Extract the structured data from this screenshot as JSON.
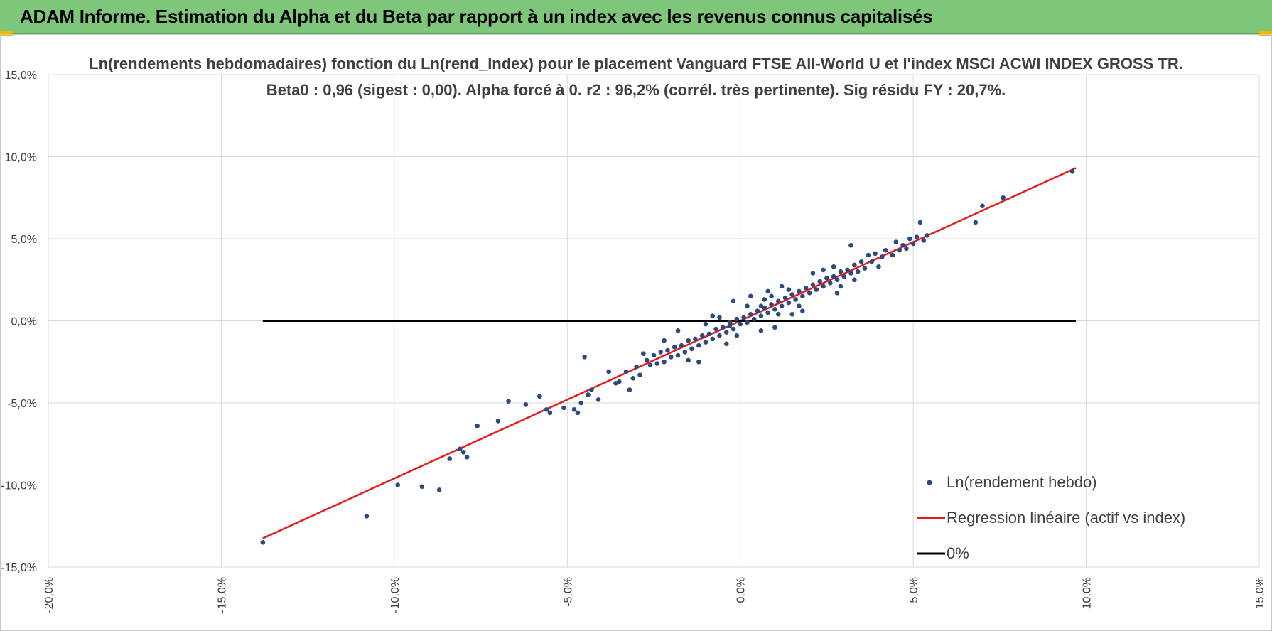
{
  "banner": {
    "title": "ADAM Informe. Estimation du Alpha et du Beta par rapport à un index avec les revenus connus capitalisés",
    "background": "#7dc67a"
  },
  "chart_data": {
    "type": "scatter",
    "title": "Ln(rendements hebdomadaires) fonction du Ln(rend_Index) pour le placement Vanguard FTSE All-World U et l'index MSCI ACWI INDEX GROSS TR.",
    "subtitle": "Beta0 : 0,96 (sigest : 0,00). Alpha forcé à 0. r2 : 96,2% (corrél. très pertinente). Sig résidu FY : 20,7%.",
    "xlabel": "",
    "ylabel": "",
    "xlim": [
      -0.2,
      0.15
    ],
    "ylim": [
      -0.15,
      0.15
    ],
    "x_ticks": [
      -0.2,
      -0.15,
      -0.1,
      -0.05,
      0.0,
      0.05,
      0.1,
      0.15
    ],
    "y_ticks": [
      -0.15,
      -0.1,
      -0.05,
      0.0,
      0.05,
      0.1,
      0.15
    ],
    "x_tick_labels": [
      "-20,0%",
      "-15,0%",
      "-10,0%",
      "-5,0%",
      "0,0%",
      "5,0%",
      "10,0%",
      "15,0%"
    ],
    "y_tick_labels": [
      "-15,0%",
      "-10,0%",
      "-5,0%",
      "0,0%",
      "5,0%",
      "10,0%",
      "15,0%"
    ],
    "grid": true,
    "legend_position": "bottom-right",
    "series": [
      {
        "name": "Ln(rendement hebdo)",
        "kind": "points",
        "color": "#2e4a7d",
        "points": [
          [
            -0.138,
            -0.135
          ],
          [
            -0.108,
            -0.119
          ],
          [
            -0.099,
            -0.1
          ],
          [
            -0.092,
            -0.101
          ],
          [
            -0.087,
            -0.103
          ],
          [
            -0.081,
            -0.078
          ],
          [
            -0.08,
            -0.08
          ],
          [
            -0.079,
            -0.083
          ],
          [
            -0.084,
            -0.084
          ],
          [
            -0.076,
            -0.064
          ],
          [
            -0.07,
            -0.061
          ],
          [
            -0.067,
            -0.049
          ],
          [
            -0.062,
            -0.051
          ],
          [
            -0.056,
            -0.054
          ],
          [
            -0.055,
            -0.056
          ],
          [
            -0.058,
            -0.046
          ],
          [
            -0.051,
            -0.053
          ],
          [
            -0.048,
            -0.054
          ],
          [
            -0.047,
            -0.056
          ],
          [
            -0.046,
            -0.05
          ],
          [
            -0.044,
            -0.045
          ],
          [
            -0.043,
            -0.042
          ],
          [
            -0.041,
            -0.048
          ],
          [
            -0.036,
            -0.038
          ],
          [
            -0.035,
            -0.037
          ],
          [
            -0.033,
            -0.031
          ],
          [
            -0.032,
            -0.042
          ],
          [
            -0.031,
            -0.035
          ],
          [
            -0.03,
            -0.028
          ],
          [
            -0.029,
            -0.033
          ],
          [
            -0.027,
            -0.024
          ],
          [
            -0.026,
            -0.027
          ],
          [
            -0.045,
            -0.022
          ],
          [
            -0.038,
            -0.031
          ],
          [
            -0.025,
            -0.021
          ],
          [
            -0.024,
            -0.026
          ],
          [
            -0.023,
            -0.019
          ],
          [
            -0.022,
            -0.025
          ],
          [
            -0.021,
            -0.018
          ],
          [
            -0.02,
            -0.022
          ],
          [
            -0.019,
            -0.016
          ],
          [
            -0.018,
            -0.021
          ],
          [
            -0.017,
            -0.015
          ],
          [
            -0.016,
            -0.019
          ],
          [
            -0.015,
            -0.012
          ],
          [
            -0.014,
            -0.017
          ],
          [
            -0.013,
            -0.011
          ],
          [
            -0.012,
            -0.015
          ],
          [
            -0.011,
            -0.009
          ],
          [
            -0.01,
            -0.013
          ],
          [
            -0.009,
            -0.008
          ],
          [
            -0.008,
            -0.011
          ],
          [
            -0.007,
            -0.005
          ],
          [
            -0.006,
            -0.009
          ],
          [
            -0.005,
            -0.004
          ],
          [
            -0.004,
            -0.007
          ],
          [
            -0.003,
            -0.001
          ],
          [
            -0.002,
            -0.005
          ],
          [
            -0.001,
            0.001
          ],
          [
            0.0,
            -0.002
          ],
          [
            0.001,
            0.002
          ],
          [
            0.002,
            -0.001
          ],
          [
            0.003,
            0.004
          ],
          [
            0.004,
            0.001
          ],
          [
            0.005,
            0.006
          ],
          [
            0.006,
            0.003
          ],
          [
            0.007,
            0.008
          ],
          [
            0.008,
            0.005
          ],
          [
            0.009,
            0.01
          ],
          [
            0.01,
            0.007
          ],
          [
            0.011,
            0.012
          ],
          [
            0.012,
            0.009
          ],
          [
            0.013,
            0.014
          ],
          [
            0.014,
            0.011
          ],
          [
            0.015,
            0.016
          ],
          [
            0.016,
            0.013
          ],
          [
            0.017,
            0.018
          ],
          [
            0.018,
            0.015
          ],
          [
            0.019,
            0.02
          ],
          [
            0.02,
            0.017
          ],
          [
            0.021,
            0.022
          ],
          [
            0.022,
            0.019
          ],
          [
            0.023,
            0.024
          ],
          [
            0.024,
            0.021
          ],
          [
            0.025,
            0.026
          ],
          [
            0.026,
            0.023
          ],
          [
            0.027,
            0.027
          ],
          [
            0.028,
            0.025
          ],
          [
            0.029,
            0.03
          ],
          [
            0.03,
            0.027
          ],
          [
            0.031,
            0.031
          ],
          [
            0.032,
            0.029
          ],
          [
            0.033,
            0.034
          ],
          [
            0.034,
            0.03
          ],
          [
            0.035,
            0.036
          ],
          [
            0.036,
            0.032
          ],
          [
            0.032,
            0.046
          ],
          [
            0.037,
            0.04
          ],
          [
            0.038,
            0.036
          ],
          [
            0.039,
            0.041
          ],
          [
            0.041,
            0.039
          ],
          [
            0.042,
            0.043
          ],
          [
            0.044,
            0.04
          ],
          [
            0.045,
            0.048
          ],
          [
            0.046,
            0.043
          ],
          [
            0.047,
            0.046
          ],
          [
            0.048,
            0.044
          ],
          [
            0.049,
            0.05
          ],
          [
            0.05,
            0.047
          ],
          [
            0.051,
            0.051
          ],
          [
            0.052,
            0.06
          ],
          [
            0.053,
            0.049
          ],
          [
            0.054,
            0.052
          ],
          [
            0.068,
            0.06
          ],
          [
            0.07,
            0.07
          ],
          [
            0.076,
            0.075
          ],
          [
            0.096,
            0.091
          ],
          [
            -0.012,
            -0.025
          ],
          [
            -0.002,
            0.012
          ],
          [
            0.01,
            -0.004
          ],
          [
            0.008,
            0.018
          ],
          [
            -0.018,
            -0.006
          ],
          [
            0.018,
            0.006
          ],
          [
            0.024,
            0.031
          ],
          [
            -0.028,
            -0.02
          ],
          [
            0.015,
            0.004
          ],
          [
            0.028,
            0.017
          ],
          [
            0.003,
            0.015
          ],
          [
            -0.008,
            0.003
          ],
          [
            0.006,
            -0.006
          ],
          [
            -0.015,
            -0.024
          ],
          [
            0.021,
            0.029
          ],
          [
            0.012,
            0.021
          ],
          [
            -0.004,
            -0.014
          ],
          [
            0.04,
            0.033
          ],
          [
            -0.022,
            -0.012
          ],
          [
            0.029,
            0.021
          ],
          [
            0.002,
            0.009
          ],
          [
            -0.01,
            -0.002
          ],
          [
            0.017,
            0.009
          ],
          [
            -0.006,
            0.002
          ],
          [
            0.007,
            0.013
          ],
          [
            -0.001,
            -0.009
          ],
          [
            0.014,
            0.019
          ],
          [
            0.027,
            0.033
          ],
          [
            0.033,
            0.025
          ],
          [
            0.006,
            0.009
          ],
          [
            -0.003,
            -0.003
          ],
          [
            0.011,
            0.004
          ],
          [
            0.009,
            0.015
          ]
        ]
      },
      {
        "name": "Regression linéaire (actif vs index)",
        "kind": "line",
        "color": "#e31b1b",
        "points": [
          [
            -0.138,
            -0.1325
          ],
          [
            0.097,
            0.0931
          ]
        ]
      },
      {
        "name": "0%",
        "kind": "line",
        "color": "#000000",
        "points": [
          [
            -0.138,
            0.0
          ],
          [
            0.097,
            0.0
          ]
        ]
      }
    ]
  }
}
